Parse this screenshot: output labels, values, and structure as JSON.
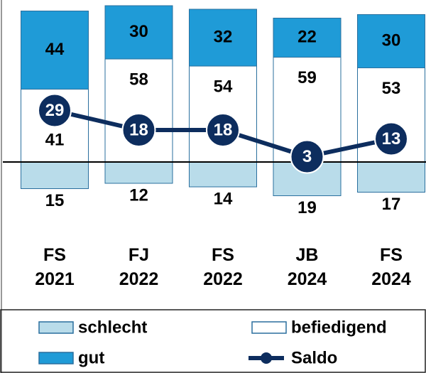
{
  "chart_data": {
    "type": "bar",
    "categories": [
      "FS 2021",
      "FJ 2022",
      "FS 2022",
      "JB 2024",
      "FS 2024"
    ],
    "series": [
      {
        "name": "schlecht",
        "color": "#b9dcea",
        "values": [
          15,
          12,
          14,
          19,
          17
        ]
      },
      {
        "name": "befiedigend",
        "color": "#ffffff",
        "values": [
          41,
          58,
          54,
          59,
          53
        ]
      },
      {
        "name": "gut",
        "color": "#1f9bd7",
        "values": [
          44,
          30,
          32,
          22,
          30
        ]
      },
      {
        "name": "Saldo",
        "type": "line",
        "color": "#0d2d5e",
        "values": [
          29,
          18,
          18,
          3,
          13
        ]
      }
    ]
  }
}
